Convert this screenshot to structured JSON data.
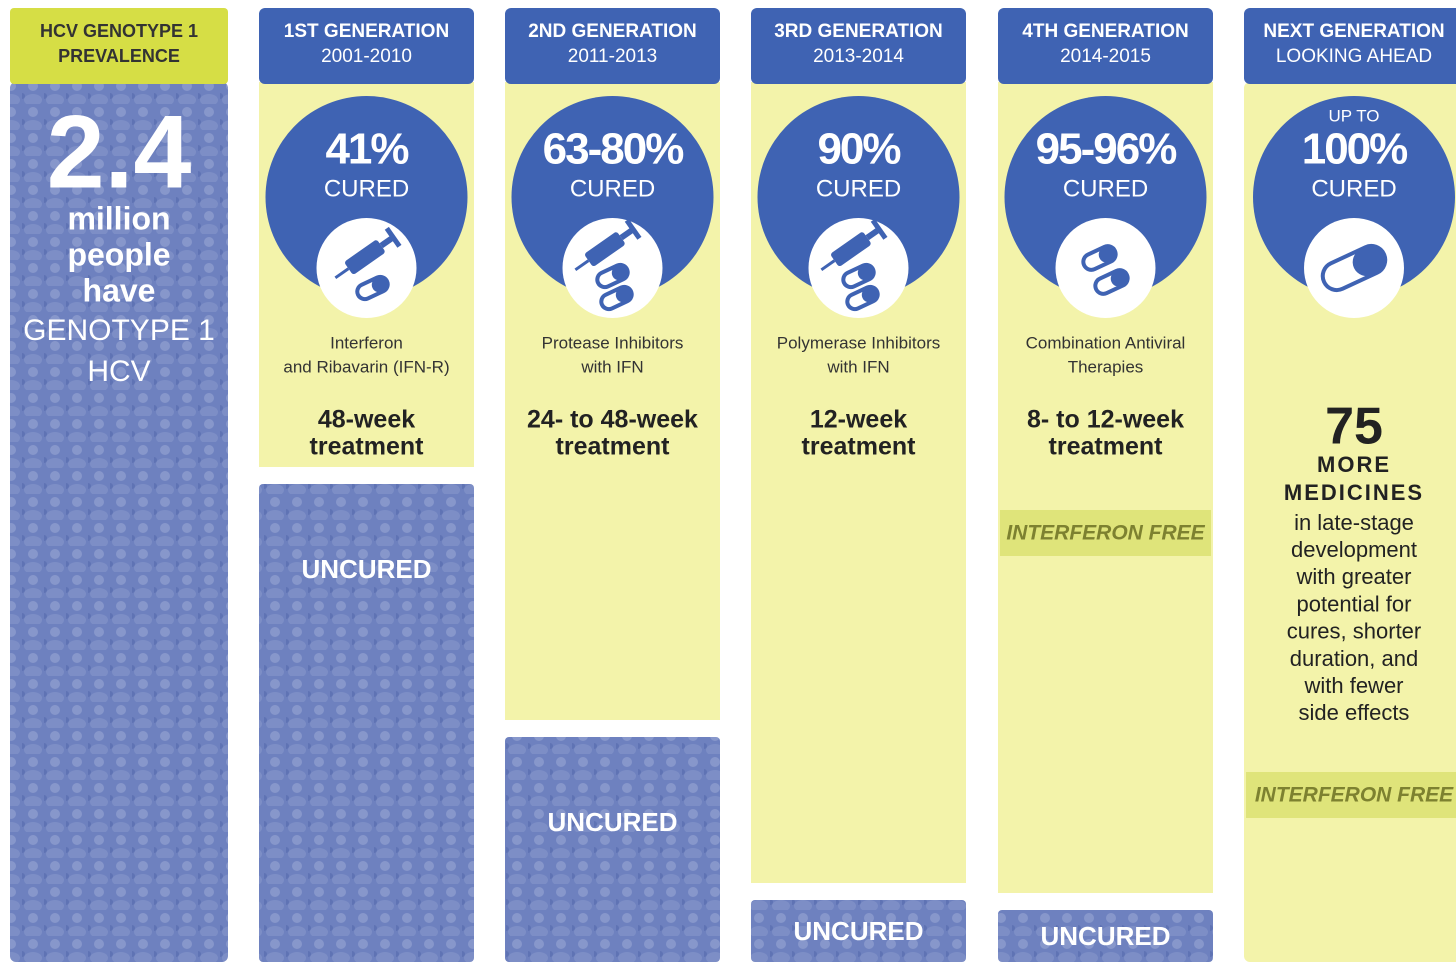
{
  "prevalence": {
    "header": [
      "HCV GENOTYPE 1",
      "PREVALENCE"
    ],
    "number": "2.4",
    "lines": [
      "million",
      "people",
      "have"
    ],
    "lines2": [
      "GENOTYPE 1",
      "HCV"
    ]
  },
  "generations": [
    {
      "header": [
        "1ST GENERATION",
        "2001-2010"
      ],
      "cured": "41%",
      "cured_label": "CURED",
      "therapy": [
        "Interferon",
        "and Ribavarin (IFN-R)"
      ],
      "duration": [
        "48-week",
        "treatment"
      ],
      "uncured": "UNCURED"
    },
    {
      "header": [
        "2ND GENERATION",
        "2011-2013"
      ],
      "cured": "63-80%",
      "cured_label": "CURED",
      "therapy": [
        "Protease Inhibitors",
        "with IFN"
      ],
      "duration": [
        "24- to 48-week",
        "treatment"
      ],
      "uncured": "UNCURED"
    },
    {
      "header": [
        "3RD GENERATION",
        "2013-2014"
      ],
      "cured": "90%",
      "cured_label": "CURED",
      "therapy": [
        "Polymerase Inhibitors",
        "with IFN"
      ],
      "duration": [
        "12-week",
        "treatment"
      ],
      "uncured": "UNCURED"
    },
    {
      "header": [
        "4TH GENERATION",
        "2014-2015"
      ],
      "cured": "95-96%",
      "cured_label": "CURED",
      "therapy": [
        "Combination Antiviral",
        "Therapies"
      ],
      "duration": [
        "8- to 12-week",
        "treatment"
      ],
      "badge": "INTERFERON FREE",
      "uncured": "UNCURED"
    }
  ],
  "next": {
    "header": [
      "NEXT GENERATION",
      "LOOKING AHEAD"
    ],
    "prefix": "UP TO",
    "cured": "100%",
    "cured_label": "CURED",
    "count": "75",
    "count_lines": [
      "MORE",
      "MEDICINES"
    ],
    "description": [
      "in late-stage",
      "development",
      "with greater",
      "potential for",
      "cures, shorter",
      "duration, and",
      "with fewer",
      "side effects"
    ],
    "badge": "INTERFERON FREE"
  }
}
